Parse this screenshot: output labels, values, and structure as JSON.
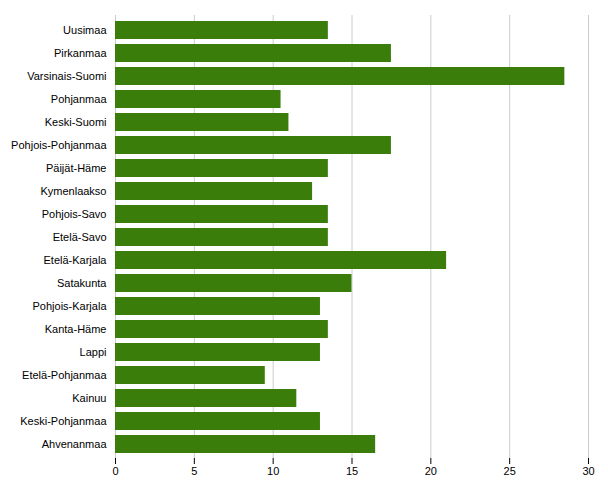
{
  "chart_data": {
    "type": "bar",
    "orientation": "horizontal",
    "categories": [
      "Uusimaa",
      "Pirkanmaa",
      "Varsinais-Suomi",
      "Pohjanmaa",
      "Keski-Suomi",
      "Pohjois-Pohjanmaa",
      "Päijät-Häme",
      "Kymenlaakso",
      "Pohjois-Savo",
      "Etelä-Savo",
      "Etelä-Karjala",
      "Satakunta",
      "Pohjois-Karjala",
      "Kanta-Häme",
      "Lappi",
      "Etelä-Pohjanmaa",
      "Kainuu",
      "Keski-Pohjanmaa",
      "Ahvenanmaa"
    ],
    "values": [
      13.5,
      17.5,
      28.5,
      10.5,
      11.0,
      17.5,
      13.5,
      12.5,
      13.5,
      13.5,
      21.0,
      15.0,
      13.0,
      13.5,
      13.0,
      9.5,
      11.5,
      13.0,
      16.5
    ],
    "color": "#3a7d0a",
    "xlim": [
      0,
      30
    ],
    "xticks": [
      0,
      5,
      10,
      15,
      20,
      25,
      30
    ],
    "grid": true
  }
}
